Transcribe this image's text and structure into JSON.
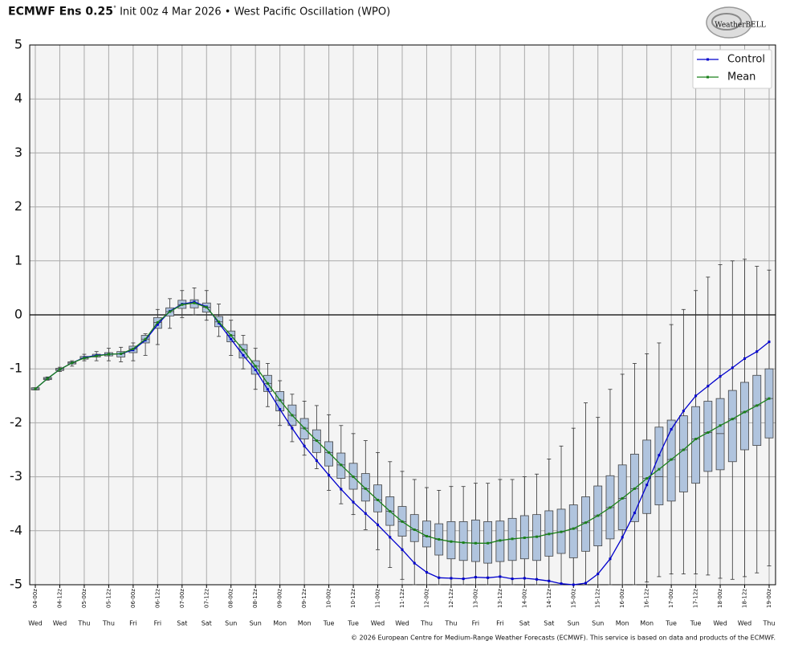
{
  "chart_data": {
    "type": "ensemble-box",
    "title": "ECMWF Ens 0.25",
    "title_degree": "°",
    "subtitle": "Init 00z 4 Mar 2026",
    "separator": "•",
    "index_name": "West Pacific Oscillation (WPO)",
    "logo": "WeatherBELL",
    "footer": "© 2026 European Centre for Medium-Range Weather Forecasts (ECMWF). This service is based on data and products of the ECMWF.",
    "categories": [
      "04-00z",
      null,
      "04-12z",
      null,
      "05-00z",
      null,
      "05-12z",
      null,
      "06-00z",
      null,
      "06-12z",
      null,
      "07-00z",
      null,
      "07-12z",
      null,
      "08-00z",
      null,
      "08-12z",
      null,
      "09-00z",
      null,
      "09-12z",
      null,
      "10-00z",
      null,
      "10-12z",
      null,
      "11-00z",
      null,
      "11-12z",
      null,
      "12-00z",
      null,
      "12-12z",
      null,
      "13-00z",
      null,
      "13-12z",
      null,
      "14-00z",
      null,
      "14-12z",
      null,
      "15-00z",
      null,
      "15-12z",
      null,
      "16-00z",
      null,
      "16-12z",
      null,
      "17-00z",
      null,
      "17-12z",
      null,
      "18-00z",
      null,
      "18-12z",
      null,
      "19-00z"
    ],
    "weekdays": [
      "Wed",
      null,
      "Wed",
      null,
      "Thu",
      null,
      "Thu",
      null,
      "Fri",
      null,
      "Fri",
      null,
      "Sat",
      null,
      "Sat",
      null,
      "Sun",
      null,
      "Sun",
      null,
      "Mon",
      null,
      "Mon",
      null,
      "Tue",
      null,
      "Tue",
      null,
      "Wed",
      null,
      "Wed",
      null,
      "Thu",
      null,
      "Thu",
      null,
      "Fri",
      null,
      "Fri",
      null,
      "Sat",
      null,
      "Sat",
      null,
      "Sun",
      null,
      "Sun",
      null,
      "Mon",
      null,
      "Mon",
      null,
      "Tue",
      null,
      "Tue",
      null,
      "Wed",
      null,
      "Wed",
      null,
      "Thu"
    ],
    "series": [
      {
        "name": "Control",
        "color": "#0000cc",
        "values": [
          -1.37,
          -1.18,
          -1.01,
          -0.89,
          -0.79,
          -0.75,
          -0.73,
          -0.72,
          -0.65,
          -0.47,
          -0.18,
          0.07,
          0.2,
          0.24,
          0.15,
          -0.15,
          -0.45,
          -0.75,
          -1.02,
          -1.38,
          -1.75,
          -2.1,
          -2.43,
          -2.7,
          -2.97,
          -3.23,
          -3.47,
          -3.68,
          -3.89,
          -4.12,
          -4.35,
          -4.6,
          -4.77,
          -4.87,
          -4.88,
          -4.89,
          -4.86,
          -4.87,
          -4.85,
          -4.89,
          -4.88,
          -4.9,
          -4.93,
          -4.98,
          -5.0,
          -4.97,
          -4.8,
          -4.52,
          -4.12,
          -3.67,
          -3.15,
          -2.6,
          -2.12,
          -1.78,
          -1.5,
          -1.32,
          -1.14,
          -0.98,
          -0.81,
          -0.68,
          -0.5
        ]
      },
      {
        "name": "Mean",
        "color": "#1a801a",
        "values": [
          -1.37,
          -1.18,
          -1.01,
          -0.89,
          -0.8,
          -0.76,
          -0.73,
          -0.72,
          -0.63,
          -0.45,
          -0.14,
          0.06,
          0.19,
          0.22,
          0.14,
          -0.13,
          -0.38,
          -0.65,
          -0.95,
          -1.27,
          -1.58,
          -1.86,
          -2.1,
          -2.33,
          -2.55,
          -2.78,
          -3.0,
          -3.22,
          -3.43,
          -3.64,
          -3.83,
          -3.98,
          -4.1,
          -4.16,
          -4.2,
          -4.22,
          -4.23,
          -4.23,
          -4.18,
          -4.15,
          -4.13,
          -4.11,
          -4.06,
          -4.02,
          -3.96,
          -3.85,
          -3.72,
          -3.57,
          -3.4,
          -3.22,
          -3.03,
          -2.86,
          -2.68,
          -2.5,
          -2.3,
          -2.18,
          -2.05,
          -1.93,
          -1.8,
          -1.68,
          -1.55
        ]
      }
    ],
    "boxes": {
      "color": "#b0c4de",
      "max": [
        -1.35,
        -1.15,
        -0.97,
        -0.85,
        -0.73,
        -0.68,
        -0.62,
        -0.6,
        -0.52,
        -0.35,
        0.1,
        0.3,
        0.45,
        0.5,
        0.45,
        0.2,
        -0.1,
        -0.38,
        -0.62,
        -0.9,
        -1.22,
        -1.47,
        -1.6,
        -1.68,
        -1.85,
        -2.05,
        -2.2,
        -2.33,
        -2.55,
        -2.72,
        -2.9,
        -3.05,
        -3.2,
        -3.25,
        -3.18,
        -3.18,
        -3.12,
        -3.12,
        -3.05,
        -3.05,
        -3.0,
        -2.95,
        -2.67,
        -2.43,
        -2.1,
        -1.63,
        -1.9,
        -1.38,
        -1.1,
        -0.9,
        -0.72,
        -0.52,
        -0.18,
        0.1,
        0.45,
        0.7,
        0.93,
        1.0,
        1.03,
        0.9,
        0.83
      ],
      "q3": [
        -1.35,
        -1.16,
        -0.99,
        -0.87,
        -0.77,
        -0.73,
        -0.7,
        -0.68,
        -0.58,
        -0.38,
        -0.05,
        0.13,
        0.27,
        0.28,
        0.22,
        -0.03,
        -0.3,
        -0.55,
        -0.85,
        -1.12,
        -1.42,
        -1.67,
        -1.92,
        -2.13,
        -2.35,
        -2.56,
        -2.75,
        -2.94,
        -3.15,
        -3.37,
        -3.55,
        -3.7,
        -3.82,
        -3.87,
        -3.83,
        -3.83,
        -3.8,
        -3.83,
        -3.82,
        -3.77,
        -3.72,
        -3.7,
        -3.63,
        -3.6,
        -3.52,
        -3.37,
        -3.17,
        -2.98,
        -2.78,
        -2.58,
        -2.32,
        -2.08,
        -1.95,
        -1.87,
        -1.7,
        -1.6,
        -1.55,
        -1.4,
        -1.25,
        -1.12,
        -1.0
      ],
      "median": [
        -1.37,
        -1.18,
        -1.01,
        -0.89,
        -0.8,
        -0.76,
        -0.73,
        -0.72,
        -0.63,
        -0.45,
        -0.14,
        0.06,
        0.19,
        0.22,
        0.14,
        -0.13,
        -0.38,
        -0.65,
        -0.95,
        -1.27,
        -1.58,
        -1.86,
        -2.1,
        -2.33,
        -2.55,
        -2.78,
        -3.0,
        -3.22,
        -3.43,
        -3.64,
        -3.83,
        -3.98,
        -4.1,
        -4.16,
        -4.2,
        -4.22,
        -4.23,
        -4.23,
        -4.18,
        -4.15,
        -4.13,
        -4.11,
        -4.06,
        -4.02,
        -3.96,
        -3.85,
        -3.72,
        -3.57,
        -3.4,
        -3.22,
        -3.03,
        -3.0,
        -2.68,
        -2.5,
        -2.3,
        -2.18,
        -2.2,
        -1.93,
        -1.8,
        -1.68,
        -1.55
      ],
      "q1": [
        -1.39,
        -1.2,
        -1.03,
        -0.91,
        -0.82,
        -0.78,
        -0.76,
        -0.78,
        -0.7,
        -0.52,
        -0.25,
        -0.02,
        0.12,
        0.13,
        0.05,
        -0.22,
        -0.5,
        -0.8,
        -1.1,
        -1.42,
        -1.78,
        -2.05,
        -2.3,
        -2.55,
        -2.8,
        -3.03,
        -3.23,
        -3.45,
        -3.65,
        -3.9,
        -4.1,
        -4.2,
        -4.3,
        -4.45,
        -4.52,
        -4.55,
        -4.57,
        -4.6,
        -4.57,
        -4.55,
        -4.52,
        -4.55,
        -4.47,
        -4.42,
        -4.5,
        -4.38,
        -4.28,
        -4.15,
        -3.98,
        -3.83,
        -3.68,
        -3.52,
        -3.45,
        -3.28,
        -3.12,
        -2.9,
        -2.87,
        -2.72,
        -2.5,
        -2.42,
        -2.28
      ],
      "min": [
        -1.39,
        -1.21,
        -1.05,
        -0.95,
        -0.85,
        -0.85,
        -0.85,
        -0.87,
        -0.85,
        -0.75,
        -0.55,
        -0.25,
        -0.05,
        0,
        -0.1,
        -0.4,
        -0.75,
        -1.0,
        -1.38,
        -1.7,
        -2.05,
        -2.35,
        -2.6,
        -2.85,
        -3.25,
        -3.5,
        -3.7,
        -3.98,
        -4.35,
        -4.68,
        -4.9,
        -5.0,
        -5.0,
        -5.0,
        -5.0,
        -5.0,
        -5.0,
        -5.0,
        -5.0,
        -5.0,
        -5.0,
        -5.0,
        -5.0,
        -5.0,
        -5.0,
        -5.0,
        -5.0,
        -5.0,
        -5.0,
        -5.0,
        -4.95,
        -4.85,
        -4.8,
        -4.8,
        -4.8,
        -4.82,
        -4.88,
        -4.9,
        -4.85,
        -4.78,
        -4.65
      ]
    },
    "ylim": [
      -5,
      5
    ],
    "yticks": [
      -5,
      -4,
      -3,
      -2,
      -1,
      0,
      1,
      2,
      3,
      4,
      5
    ],
    "zero_line": 0,
    "grid": true,
    "legend": "top-right"
  }
}
